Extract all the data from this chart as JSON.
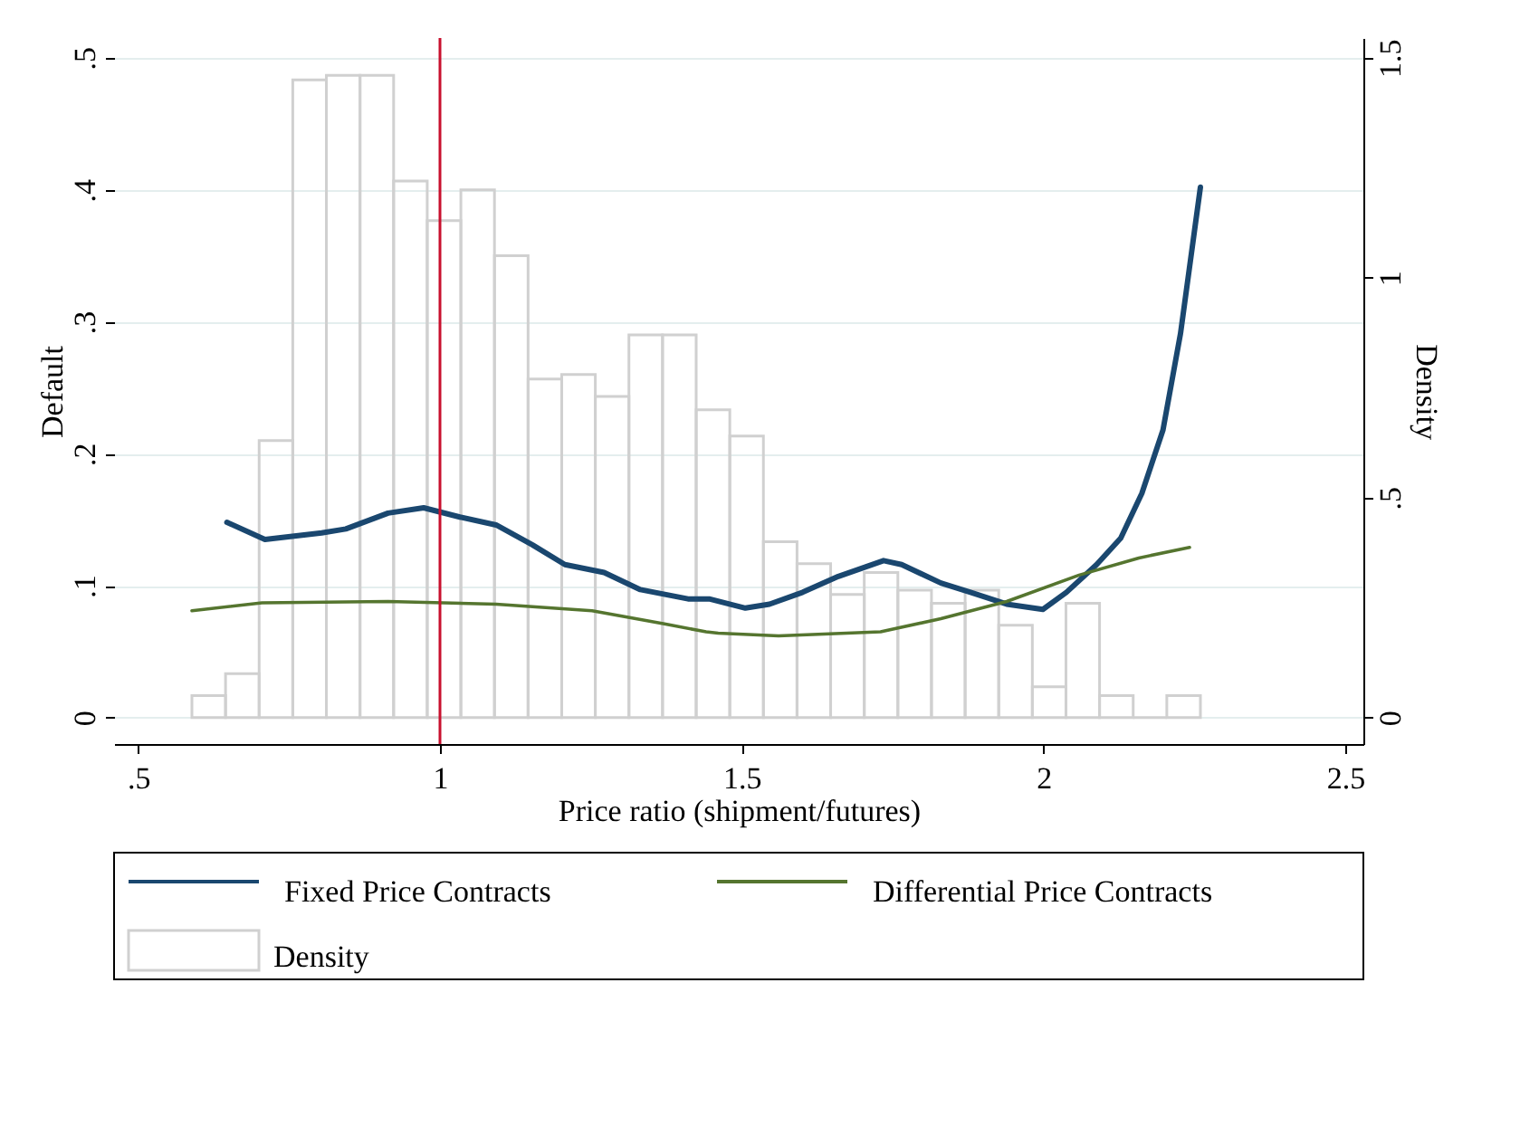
{
  "chart_data": {
    "type": "line",
    "xlabel": "Price ratio (shipment/futures)",
    "ylabel": "Default",
    "y2label": "Density",
    "xlim": [
      0.46,
      2.53
    ],
    "xticks": [
      {
        "value": 0.5,
        "label": ".5"
      },
      1,
      {
        "value": 1.5,
        "label": "1.5"
      },
      2,
      {
        "value": 2.5,
        "label": "2.5"
      }
    ],
    "ylim": [
      -0.02,
      0.515
    ],
    "yticks": [
      0,
      {
        "value": 0.1,
        "label": ".1"
      },
      {
        "value": 0.2,
        "label": ".2"
      },
      {
        "value": 0.3,
        "label": ".3"
      },
      {
        "value": 0.4,
        "label": ".4"
      },
      {
        "value": 0.5,
        "label": ".5"
      }
    ],
    "y2lim": [
      -0.06,
      1.545
    ],
    "y2ticks": [
      0,
      {
        "value": 0.5,
        "label": ".5"
      },
      1,
      {
        "value": 1.5,
        "label": "1.5"
      }
    ],
    "grid": "y",
    "legend": "bottom",
    "ref_lines": [
      {
        "axis": "x",
        "value": 1,
        "color": "#c8102e"
      }
    ],
    "series": [
      {
        "name": "Fixed Price Contracts",
        "color": "#1a476f",
        "x": [
          0.647,
          0.71,
          0.804,
          0.844,
          0.914,
          0.973,
          1.033,
          1.093,
          1.153,
          1.207,
          1.272,
          1.332,
          1.411,
          1.446,
          1.506,
          1.546,
          1.601,
          1.66,
          1.735,
          1.765,
          1.83,
          1.879,
          1.939,
          1.999,
          2.038,
          2.088,
          2.128,
          2.163,
          2.198,
          2.227,
          2.26
        ],
        "values": [
          0.148,
          0.135,
          0.14,
          0.143,
          0.155,
          0.159,
          0.152,
          0.146,
          0.131,
          0.116,
          0.11,
          0.097,
          0.09,
          0.09,
          0.083,
          0.086,
          0.095,
          0.107,
          0.119,
          0.116,
          0.102,
          0.095,
          0.086,
          0.082,
          0.095,
          0.116,
          0.136,
          0.17,
          0.218,
          0.291,
          0.402
        ]
      },
      {
        "name": "Differential Price Contracts",
        "color": "#55752f",
        "x": [
          0.589,
          0.705,
          0.914,
          1.093,
          1.252,
          1.372,
          1.441,
          1.461,
          1.561,
          1.73,
          1.83,
          1.939,
          2.059,
          2.158,
          2.242
        ],
        "values": [
          0.081,
          0.087,
          0.088,
          0.086,
          0.081,
          0.071,
          0.065,
          0.064,
          0.062,
          0.065,
          0.075,
          0.088,
          0.108,
          0.121,
          0.129
        ]
      },
      {
        "name": "Density",
        "type": "histogram",
        "axis": "y2",
        "color": "#d0d0d0",
        "bins": [
          0.589,
          0.6447,
          0.7004,
          0.7561,
          0.8118,
          0.8675,
          0.9232,
          0.9789,
          1.0346,
          1.0903,
          1.146,
          1.2017,
          1.2574,
          1.3131,
          1.3688,
          1.4245,
          1.4802,
          1.5359,
          1.5916,
          1.6473,
          1.703,
          1.7587,
          1.8144,
          1.8701,
          1.9258,
          1.9815,
          2.0372,
          2.0929,
          2.1486,
          2.2043,
          2.26
        ],
        "values": [
          0.05,
          0.1,
          0.63,
          1.45,
          1.46,
          1.46,
          1.22,
          1.13,
          1.2,
          1.05,
          0.77,
          0.78,
          0.73,
          0.87,
          0.87,
          0.7,
          0.64,
          0.4,
          0.35,
          0.28,
          0.33,
          0.29,
          0.26,
          0.29,
          0.21,
          0.07,
          0.26,
          0.05,
          0,
          0.05
        ]
      }
    ]
  }
}
